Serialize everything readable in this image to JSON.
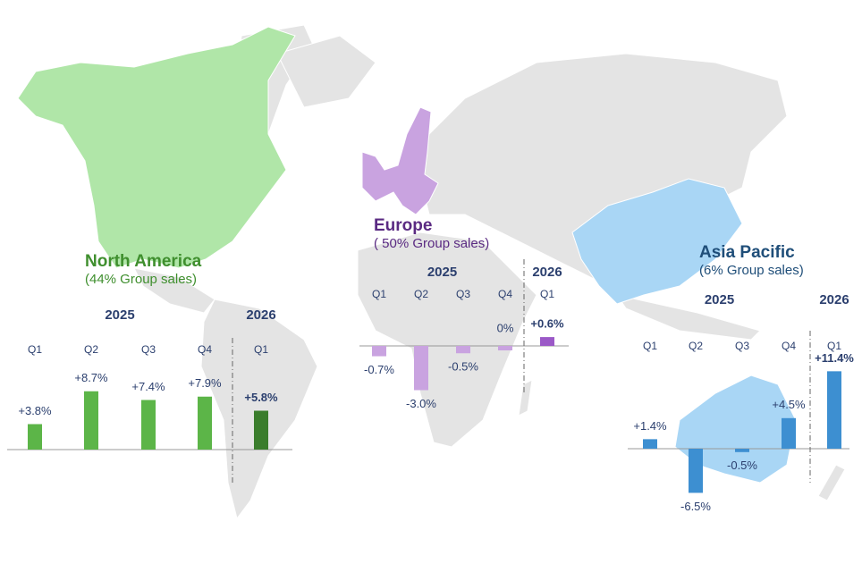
{
  "chart_data": [
    {
      "type": "bar",
      "title": "North America",
      "subtitle": "(44% Group sales)",
      "title_color": "#3f8f2e",
      "years": [
        "2025",
        "2026"
      ],
      "categories": [
        "Q1",
        "Q2",
        "Q3",
        "Q4",
        "Q1"
      ],
      "values": [
        3.8,
        8.7,
        7.4,
        7.9,
        5.8
      ],
      "value_labels": [
        "+3.8%",
        "+8.7%",
        "+7.4%",
        "+7.9%",
        "+5.8%"
      ],
      "colors": [
        "#5cb548",
        "#5cb548",
        "#5cb548",
        "#5cb548",
        "#3a7d2c"
      ]
    },
    {
      "type": "bar",
      "title": "Europe",
      "subtitle": "( 50% Group sales)",
      "title_color": "#5a2a82",
      "years": [
        "2025",
        "2026"
      ],
      "categories": [
        "Q1",
        "Q2",
        "Q3",
        "Q4",
        "Q1"
      ],
      "values": [
        -0.7,
        -3.0,
        -0.5,
        0,
        0.6
      ],
      "value_labels": [
        "-0.7%",
        "-3.0%",
        "-0.5%",
        "0%",
        "+0.6%"
      ],
      "colors": [
        "#c9a3e0",
        "#c9a3e0",
        "#c9a3e0",
        "#c9a3e0",
        "#9b59c7"
      ]
    },
    {
      "type": "bar",
      "title": "Asia Pacific",
      "subtitle": "(6% Group sales)",
      "title_color": "#1f4e79",
      "years": [
        "2025",
        "2026"
      ],
      "categories": [
        "Q1",
        "Q2",
        "Q3",
        "Q4",
        "Q1"
      ],
      "values": [
        1.4,
        -6.5,
        -0.5,
        4.5,
        11.4
      ],
      "value_labels": [
        "+1.4%",
        "-6.5%",
        "-0.5%",
        "+4.5%",
        "+11.4%"
      ],
      "colors": [
        "#3d8fd1",
        "#3d8fd1",
        "#3d8fd1",
        "#3d8fd1",
        "#3d8fd1"
      ]
    }
  ]
}
